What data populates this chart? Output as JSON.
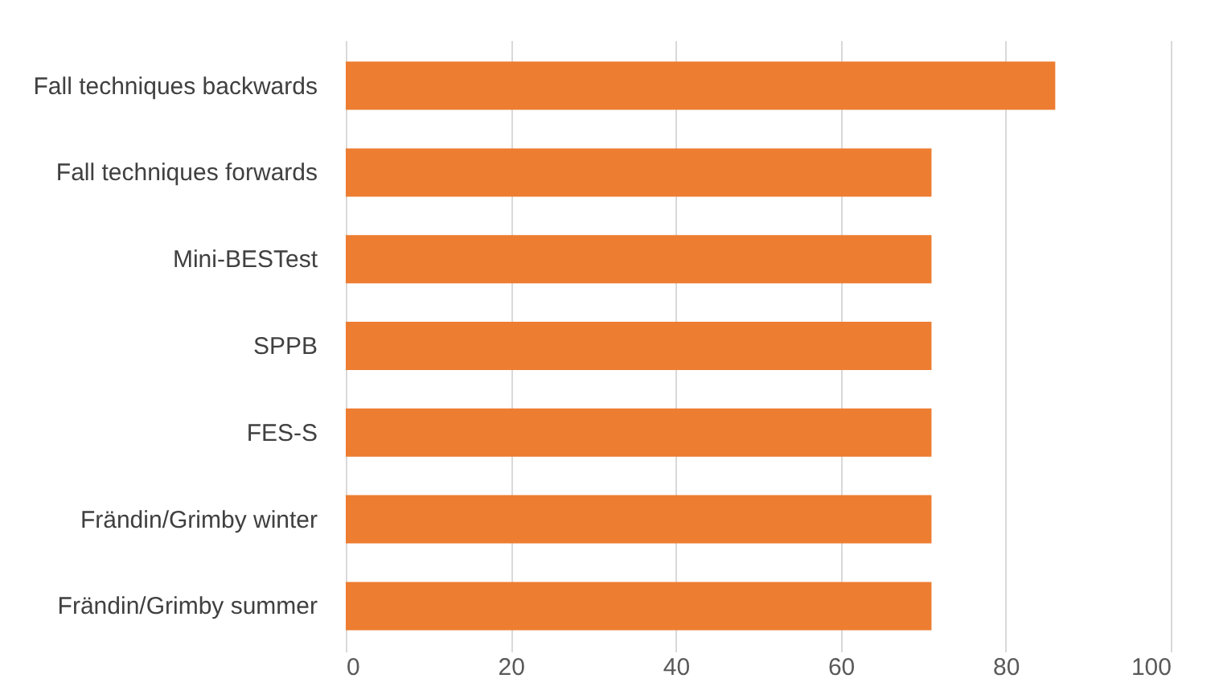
{
  "chart_data": {
    "type": "bar",
    "orientation": "horizontal",
    "categories": [
      "Fall techniques backwards",
      "Fall techniques forwards",
      "Mini-BESTest",
      "SPPB",
      "FES-S",
      "Frändin/Grimby winter",
      "Frändin/Grimby summer"
    ],
    "values": [
      86,
      71,
      71,
      71,
      71,
      71,
      71
    ],
    "color": "#ed7d31",
    "xlim": [
      0,
      100
    ],
    "xticks": [
      0,
      20,
      40,
      60,
      80,
      100
    ],
    "grid": "x"
  }
}
